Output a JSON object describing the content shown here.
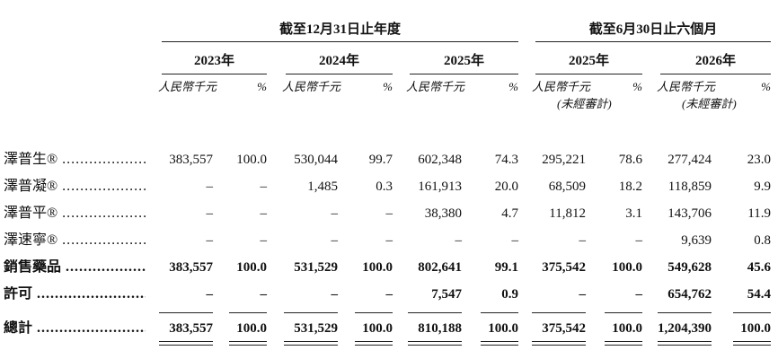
{
  "header": {
    "groups": [
      "截至12月31日止年度",
      "截至6月30日止六個月"
    ],
    "periods": [
      {
        "year": "2023年",
        "amount": "人民幣千元",
        "percent": "%"
      },
      {
        "year": "2024年",
        "amount": "人民幣千元",
        "percent": "%"
      },
      {
        "year": "2025年",
        "amount": "人民幣千元",
        "percent": "%"
      },
      {
        "year": "2025年",
        "amount": "人民幣千元",
        "percent": "%",
        "note": "(未經審計)"
      },
      {
        "year": "2026年",
        "amount": "人民幣千元",
        "percent": "%",
        "note": "(未經審計)"
      }
    ]
  },
  "rows": [
    {
      "label": "澤普生®",
      "cells": [
        "383,557",
        "100.0",
        "530,044",
        "99.7",
        "602,348",
        "74.3",
        "295,221",
        "78.6",
        "277,424",
        "23.0"
      ]
    },
    {
      "label": "澤普凝®",
      "cells": [
        "–",
        "–",
        "1,485",
        "0.3",
        "161,913",
        "20.0",
        "68,509",
        "18.2",
        "118,859",
        "9.9"
      ]
    },
    {
      "label": "澤普平®",
      "cells": [
        "–",
        "–",
        "–",
        "–",
        "38,380",
        "4.7",
        "11,812",
        "3.1",
        "143,706",
        "11.9"
      ]
    },
    {
      "label": "澤速寧®",
      "cells": [
        "–",
        "–",
        "–",
        "–",
        "–",
        "–",
        "–",
        "–",
        "9,639",
        "0.8"
      ]
    },
    {
      "label": "銷售藥品",
      "bold": true,
      "cells": [
        "383,557",
        "100.0",
        "531,529",
        "100.0",
        "802,641",
        "99.1",
        "375,542",
        "100.0",
        "549,628",
        "45.6"
      ]
    },
    {
      "label": "許可",
      "bold": true,
      "cells": [
        "–",
        "–",
        "–",
        "–",
        "7,547",
        "0.9",
        "–",
        "–",
        "654,762",
        "54.4"
      ]
    },
    {
      "label": "總計",
      "bold": true,
      "cells": [
        "383,557",
        "100.0",
        "531,529",
        "100.0",
        "810,188",
        "100.0",
        "375,542",
        "100.0",
        "1,204,390",
        "100.0"
      ]
    }
  ]
}
